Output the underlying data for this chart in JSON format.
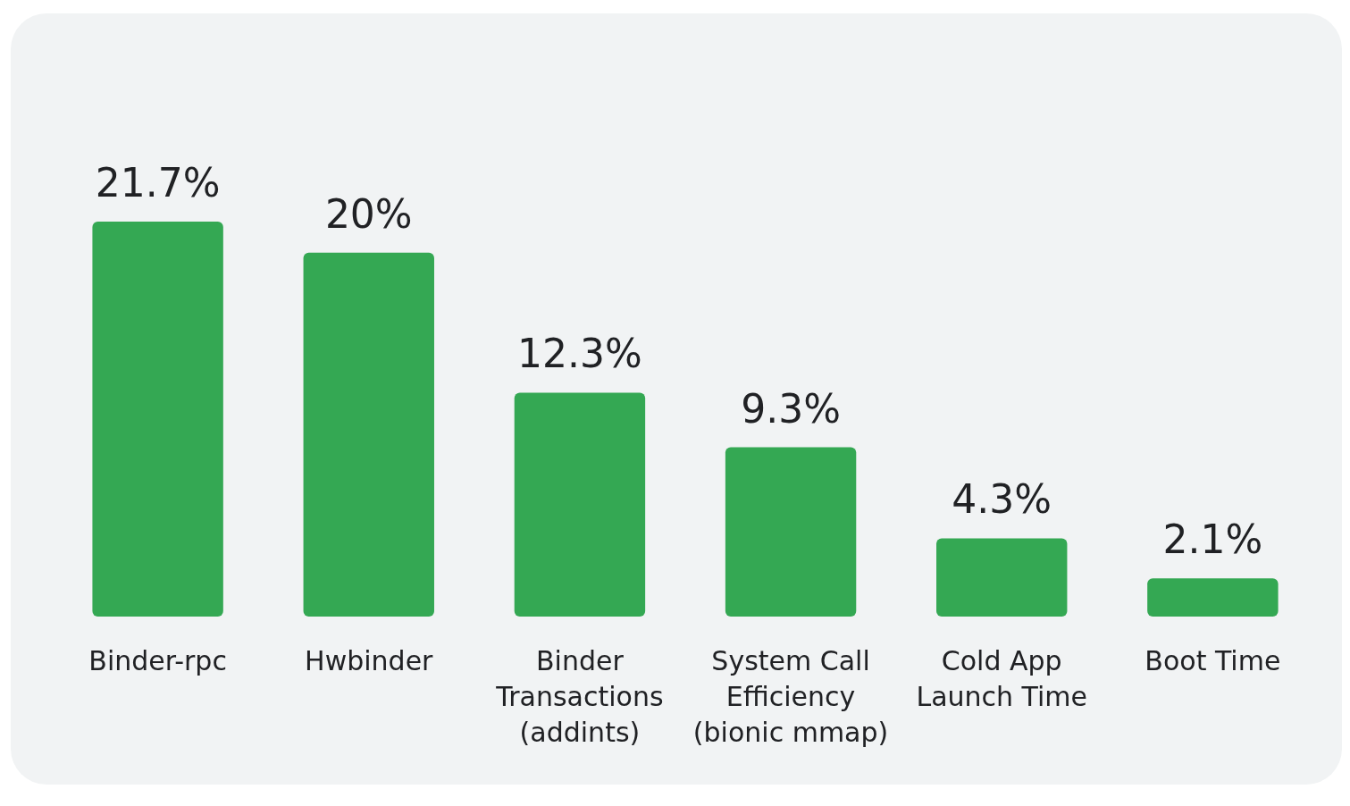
{
  "chart_data": {
    "type": "bar",
    "categories": [
      "Binder-rpc",
      "Hwbinder",
      "Binder Transactions (addints)",
      "System Call Efficiency (bionic mmap)",
      "Cold App Launch Time",
      "Boot Time"
    ],
    "values": [
      21.7,
      20,
      12.3,
      9.3,
      4.3,
      2.1
    ],
    "value_labels": [
      "21.7%",
      "20%",
      "12.3%",
      "9.3%",
      "4.3%",
      "2.1%"
    ],
    "color": "#34a853"
  }
}
